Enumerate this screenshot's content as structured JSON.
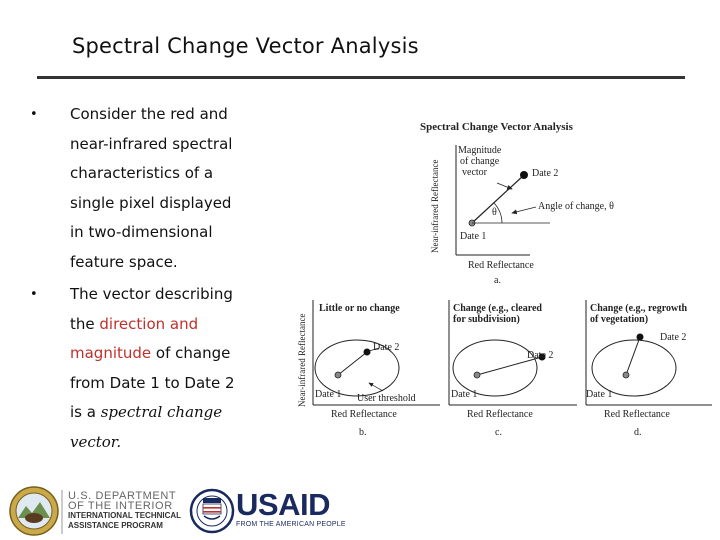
{
  "slide": {
    "title": "Spectral Change Vector Analysis"
  },
  "bullets": [
    {
      "lines": [
        "Consider the red and",
        "near-infrared spectral",
        "characteristics of a",
        "single pixel displayed",
        "in two-dimensional",
        "feature space."
      ]
    },
    {
      "l1": "The vector describing",
      "l2_prefix": "the ",
      "l2_red": "direction and",
      "l3_red": "magnitude",
      "l3_suffix": " of change",
      "l4": "from Date 1 to Date 2",
      "l5_prefix": "is a ",
      "l5_ital": "spectral change",
      "l6_ital": "vector."
    }
  ],
  "figure_a": {
    "title": "Spectral Change Vector Analysis",
    "ylabel": "Near-infrared Reflectance",
    "xlabel": "Red Reflectance",
    "magnitude_label": [
      "Magnitude",
      "of change",
      "vector"
    ],
    "date2": "Date 2",
    "date1": "Date 1",
    "angle_label": "Angle of change, θ",
    "theta": "θ",
    "panel_letter": "a."
  },
  "figure_b": {
    "ylabel": "Near-infrared Reflectance",
    "title": "Little or no change",
    "date2": "Date 2",
    "date1": "Date 1",
    "threshold": "User threshold",
    "xlabel": "Red Reflectance",
    "panel_letter": "b."
  },
  "figure_c": {
    "title": [
      "Change (e.g., cleared",
      "for subdivision)"
    ],
    "date2": "Date 2",
    "date1": "Date 1",
    "xlabel": "Red Reflectance",
    "panel_letter": "c."
  },
  "figure_d": {
    "title": [
      "Change (e.g., regrowth",
      "of vegetation)"
    ],
    "date2": "Date 2",
    "date1": "Date 1",
    "xlabel": "Red Reflectance",
    "panel_letter": "d."
  },
  "footer": {
    "doi_line1": "U.S. DEPARTMENT",
    "doi_line2": "OF THE INTERIOR",
    "doi_line3": "INTERNATIONAL TECHNICAL",
    "doi_line4": "ASSISTANCE PROGRAM",
    "usaid_name": "USAID",
    "usaid_tagline": "FROM THE AMERICAN PEOPLE",
    "colors": {
      "usaid_blue": "#1a2a5e",
      "usaid_red": "#c0302b"
    }
  }
}
